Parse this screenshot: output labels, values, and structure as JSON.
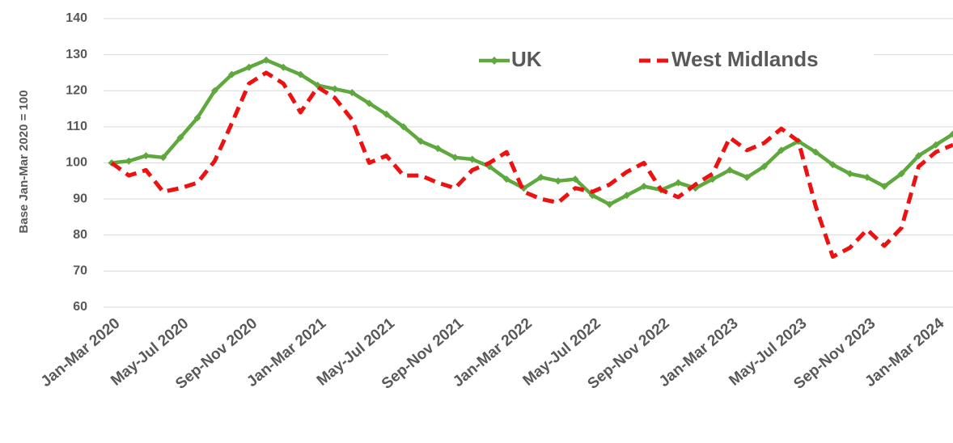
{
  "chart_data": {
    "type": "line",
    "y_label": "Base Jan-Mar 2020 = 100",
    "categories": [
      "Jan-Mar 2020",
      null,
      null,
      null,
      "May-Jul 2020",
      null,
      null,
      null,
      "Sep-Nov 2020",
      null,
      null,
      null,
      "Jan-Mar 2021",
      null,
      null,
      null,
      "May-Jul 2021",
      null,
      null,
      null,
      "Sep-Nov 2021",
      null,
      null,
      null,
      "Jan-Mar 2022",
      null,
      null,
      null,
      "May-Jul 2022",
      null,
      null,
      null,
      "Sep-Nov 2022",
      null,
      null,
      null,
      "Jan-Mar 2023",
      null,
      null,
      null,
      "May-Jul 2023",
      null,
      null,
      null,
      "Sep-Nov 2023",
      null,
      null,
      null,
      "Jan-Mar 2024",
      null
    ],
    "series": [
      {
        "name": "UK",
        "color": "#5fa83e",
        "values": [
          100,
          100.5,
          102,
          101.5,
          107,
          112.5,
          120,
          124.5,
          126.5,
          128.5,
          126.5,
          124.5,
          121.5,
          120.5,
          119.5,
          116.5,
          113.5,
          110,
          106,
          104,
          101.5,
          101,
          99,
          95.5,
          93,
          96,
          95,
          95.5,
          91,
          88.5,
          91,
          93.5,
          92.5,
          94.5,
          93,
          95.5,
          98,
          96,
          99,
          103.5,
          106,
          103,
          99.5,
          97,
          96,
          93.5,
          97,
          102,
          105,
          108
        ]
      },
      {
        "name": "West Midlands",
        "color": "#ee1111",
        "values": [
          100,
          96.5,
          98,
          92,
          93,
          94.5,
          100.5,
          111,
          122,
          125,
          122,
          114,
          121,
          118,
          112,
          100,
          102,
          96.5,
          96.5,
          94.5,
          93,
          98,
          100,
          103,
          92,
          90,
          89,
          93,
          92,
          94,
          97.5,
          100,
          92.5,
          90.5,
          94,
          97,
          107,
          103.5,
          105.5,
          109.5,
          106,
          88,
          74,
          76.5,
          81.5,
          77,
          82,
          99,
          103,
          105
        ]
      }
    ],
    "ylim": [
      60,
      140
    ],
    "yticks": [
      60,
      70,
      80,
      90,
      100,
      110,
      120,
      130,
      140
    ],
    "grid": true
  }
}
